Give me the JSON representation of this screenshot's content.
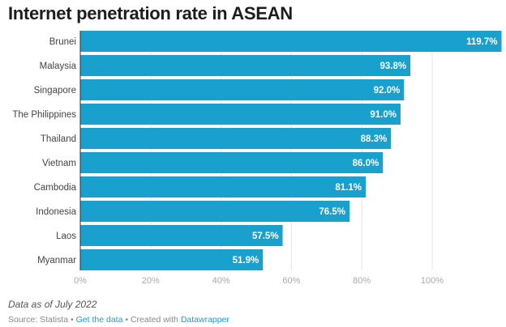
{
  "chart_data": {
    "type": "bar",
    "orientation": "horizontal",
    "title": "Internet penetration rate in ASEAN",
    "categories": [
      "Brunei",
      "Malaysia",
      "Singapore",
      "The Philippines",
      "Thailand",
      "Vietnam",
      "Cambodia",
      "Indonesia",
      "Laos",
      "Myanmar"
    ],
    "values": [
      119.7,
      93.8,
      92.0,
      91.0,
      88.3,
      86.0,
      81.1,
      76.5,
      57.5,
      51.9
    ],
    "value_labels": [
      "119.7%",
      "93.8%",
      "92.0%",
      "91.0%",
      "88.3%",
      "86.0%",
      "81.1%",
      "76.5%",
      "57.5%",
      "51.9%"
    ],
    "xlim": [
      0,
      119.7
    ],
    "xticks": [
      0,
      20,
      40,
      60,
      80,
      100
    ],
    "xtick_labels": [
      "0%",
      "20%",
      "40%",
      "60%",
      "80%",
      "100%"
    ],
    "grid": true,
    "bar_color": "#1aa0cc"
  },
  "footer": {
    "note": "Data as of July 2022",
    "source_prefix": "Source: Statista • ",
    "get_data": "Get the data",
    "created_with": " • Created with ",
    "datawrapper": "Datawrapper"
  }
}
